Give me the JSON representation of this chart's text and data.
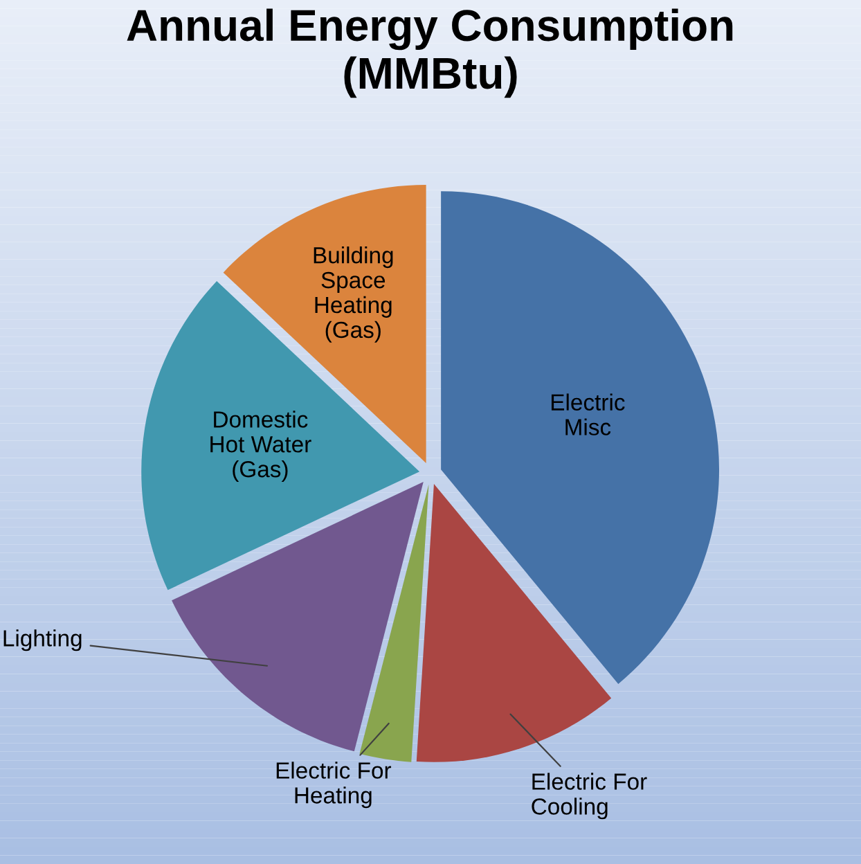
{
  "chart_data": {
    "type": "pie",
    "title": "Annual Energy Consumption\n(MMBtu)",
    "categories": [
      "Electric\nMisc",
      "Electric For\nCooling",
      "Electric For\nHeating",
      "Lighting",
      "Domestic\nHot Water\n(Gas)",
      "Building\nSpace\nHeating\n(Gas)"
    ],
    "values": [
      39,
      12,
      3,
      14,
      19,
      13
    ],
    "colors": [
      "#4572a7",
      "#aa4643",
      "#89a54e",
      "#71588f",
      "#4198af",
      "#db843d"
    ],
    "legend": false
  }
}
